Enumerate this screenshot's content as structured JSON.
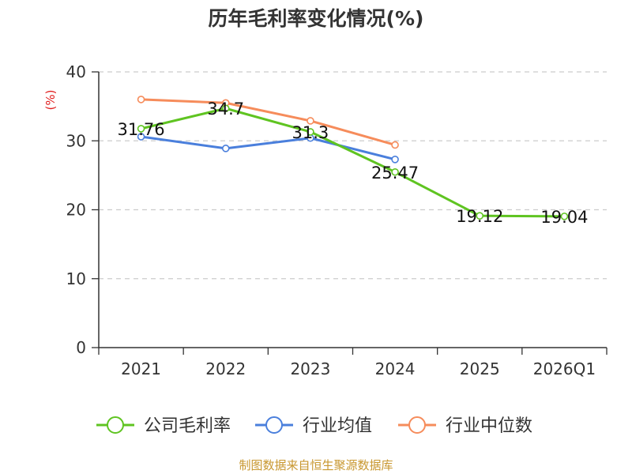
{
  "chart_data": {
    "type": "line",
    "title": "历年毛利率变化情况(%)",
    "ylabel": "(%)",
    "xlabel": "",
    "ylim": [
      0,
      40
    ],
    "yticks": [
      0,
      10,
      20,
      30,
      40
    ],
    "grid": true,
    "legend_position": "bottom",
    "categories": [
      "2021",
      "2022",
      "2023",
      "2024",
      "2025",
      "2026Q1"
    ],
    "series": [
      {
        "name": "公司毛利率",
        "color": "#5fc421",
        "values": [
          31.76,
          34.7,
          31.3,
          25.47,
          19.12,
          19.04
        ],
        "labels": [
          "31.76",
          "34.7",
          "31.3",
          "25.47",
          "19.12",
          "19.04"
        ]
      },
      {
        "name": "行业均值",
        "color": "#4a7fdc",
        "values": [
          30.6,
          28.9,
          30.4,
          27.3,
          null,
          null
        ]
      },
      {
        "name": "行业中位数",
        "color": "#f68c5b",
        "values": [
          36.0,
          35.5,
          32.9,
          29.4,
          null,
          null
        ]
      }
    ],
    "source": "制图数据来自恒生聚源数据库"
  }
}
